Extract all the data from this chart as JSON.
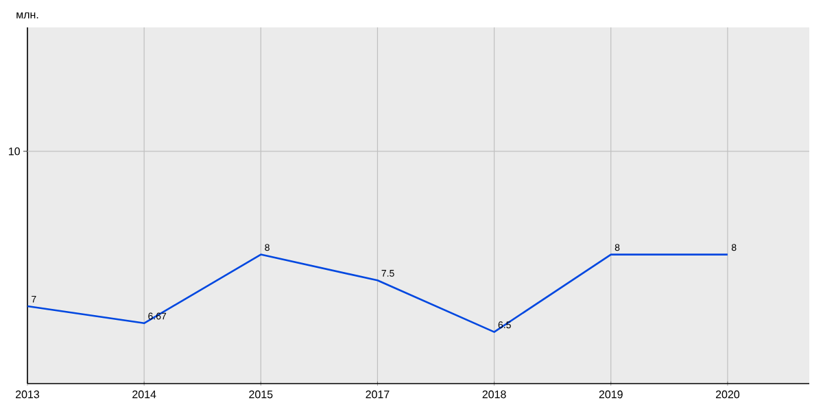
{
  "chart_data": {
    "type": "line",
    "ylabel": "млн.",
    "categories": [
      "2013",
      "2014",
      "2015",
      "2017",
      "2018",
      "2019",
      "2020"
    ],
    "series": [
      {
        "color": "#0047e0",
        "values": [
          7,
          6.67,
          8,
          7.5,
          6.5,
          8,
          8
        ]
      }
    ],
    "ylim": [
      5.5,
      12.4
    ],
    "ref_lines": [
      {
        "axis": "y",
        "value": 10,
        "label": "10",
        "color": "#c0c0c0"
      }
    ],
    "grid": "x",
    "data_labels": true,
    "marker": "none",
    "line_style": "solid"
  }
}
